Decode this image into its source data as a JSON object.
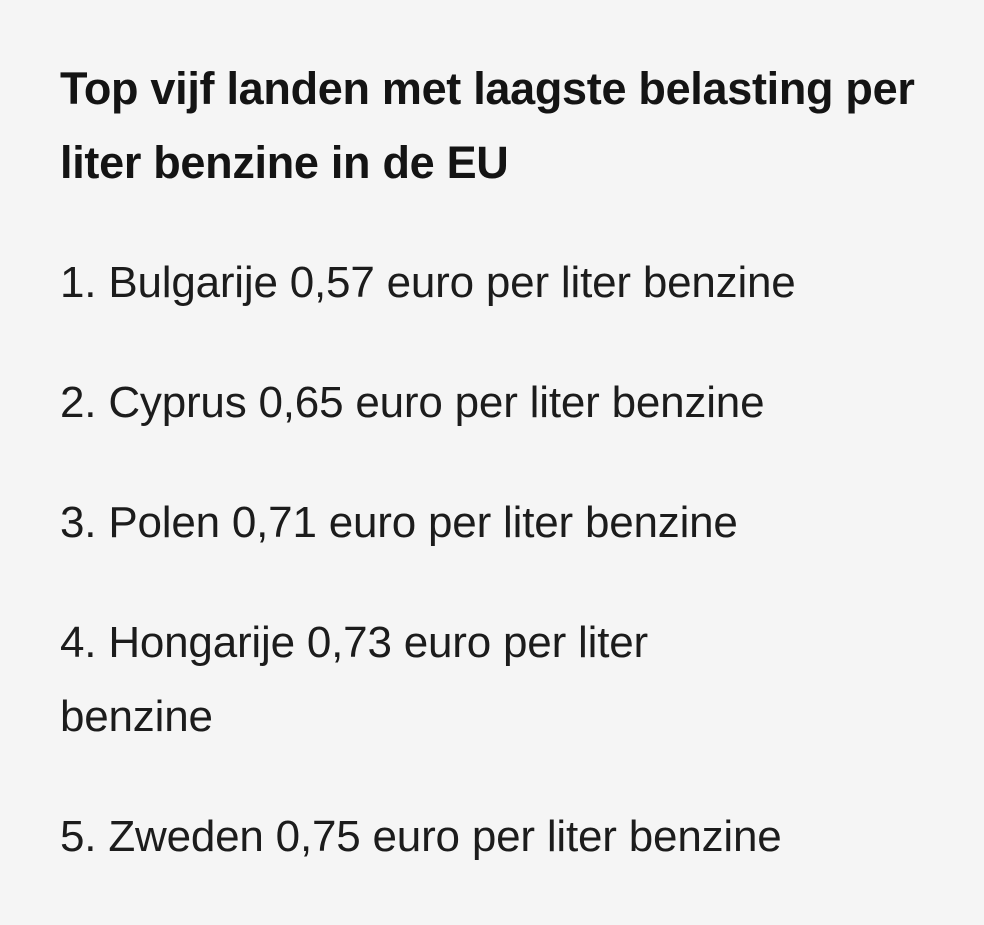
{
  "heading": "Top vijf landen met laagste belasting per liter benzine in de EU",
  "items": [
    {
      "text": "1. Bulgarije 0,57 euro per liter benzine"
    },
    {
      "text": "2. Cyprus 0,65 euro per liter benzine"
    },
    {
      "text": "3. Polen 0,71 euro per liter benzine"
    },
    {
      "text": "4. Hongarije 0,73 euro per liter benzine"
    },
    {
      "text": "5. Zweden 0,75 euro per liter benzine"
    }
  ]
}
